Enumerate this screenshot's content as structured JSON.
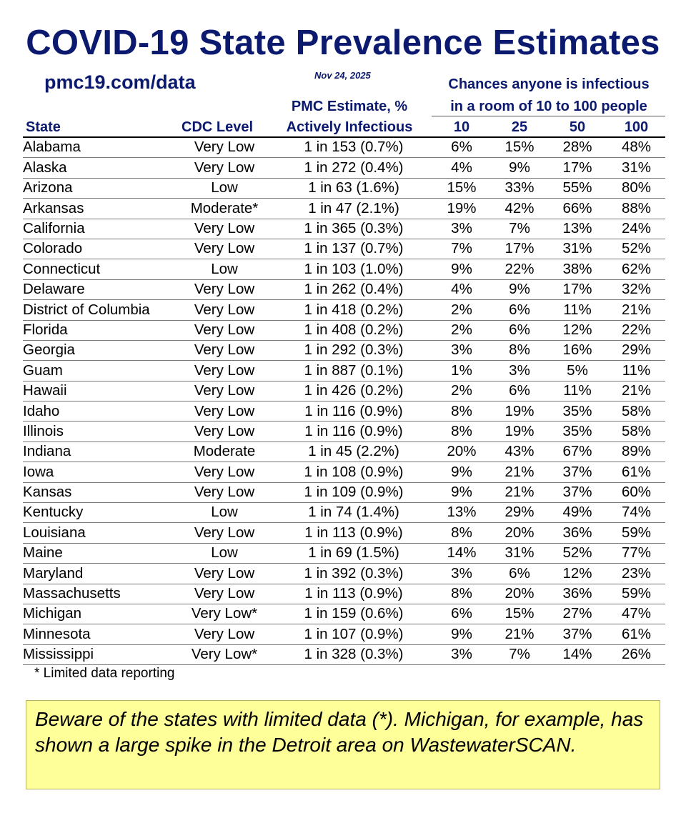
{
  "title": "COVID-19 State Prevalence Estimates",
  "url": "pmc19.com/data",
  "date": "Nov 24, 2025",
  "chances_header": [
    "Chances anyone is infectious",
    "in a room of 10 to 100 people"
  ],
  "columns": {
    "state": "State",
    "cdc": "CDC Level",
    "pmc_line1": "PMC Estimate, %",
    "pmc_line2": "Actively Infectious",
    "r10": "10",
    "r25": "25",
    "r50": "50",
    "r100": "100"
  },
  "rows": [
    {
      "state": "Alabama",
      "cdc": "Very Low",
      "pmc": "1 in 153 (0.7%)",
      "r10": "6%",
      "r25": "15%",
      "r50": "28%",
      "r100": "48%"
    },
    {
      "state": "Alaska",
      "cdc": "Very Low",
      "pmc": "1 in 272 (0.4%)",
      "r10": "4%",
      "r25": "9%",
      "r50": "17%",
      "r100": "31%"
    },
    {
      "state": "Arizona",
      "cdc": "Low",
      "pmc": "1 in 63 (1.6%)",
      "r10": "15%",
      "r25": "33%",
      "r50": "55%",
      "r100": "80%"
    },
    {
      "state": "Arkansas",
      "cdc": "Moderate*",
      "pmc": "1 in 47 (2.1%)",
      "r10": "19%",
      "r25": "42%",
      "r50": "66%",
      "r100": "88%"
    },
    {
      "state": "California",
      "cdc": "Very Low",
      "pmc": "1 in 365 (0.3%)",
      "r10": "3%",
      "r25": "7%",
      "r50": "13%",
      "r100": "24%"
    },
    {
      "state": "Colorado",
      "cdc": "Very Low",
      "pmc": "1 in 137 (0.7%)",
      "r10": "7%",
      "r25": "17%",
      "r50": "31%",
      "r100": "52%"
    },
    {
      "state": "Connecticut",
      "cdc": "Low",
      "pmc": "1 in 103 (1.0%)",
      "r10": "9%",
      "r25": "22%",
      "r50": "38%",
      "r100": "62%"
    },
    {
      "state": "Delaware",
      "cdc": "Very Low",
      "pmc": "1 in 262 (0.4%)",
      "r10": "4%",
      "r25": "9%",
      "r50": "17%",
      "r100": "32%"
    },
    {
      "state": "District of Columbia",
      "cdc": "Very Low",
      "pmc": "1 in 418 (0.2%)",
      "r10": "2%",
      "r25": "6%",
      "r50": "11%",
      "r100": "21%"
    },
    {
      "state": "Florida",
      "cdc": "Very Low",
      "pmc": "1 in 408 (0.2%)",
      "r10": "2%",
      "r25": "6%",
      "r50": "12%",
      "r100": "22%"
    },
    {
      "state": "Georgia",
      "cdc": "Very Low",
      "pmc": "1 in 292 (0.3%)",
      "r10": "3%",
      "r25": "8%",
      "r50": "16%",
      "r100": "29%"
    },
    {
      "state": "Guam",
      "cdc": "Very Low",
      "pmc": "1 in 887 (0.1%)",
      "r10": "1%",
      "r25": "3%",
      "r50": "5%",
      "r100": "11%"
    },
    {
      "state": "Hawaii",
      "cdc": "Very Low",
      "pmc": "1 in 426 (0.2%)",
      "r10": "2%",
      "r25": "6%",
      "r50": "11%",
      "r100": "21%"
    },
    {
      "state": "Idaho",
      "cdc": "Very Low",
      "pmc": "1 in 116 (0.9%)",
      "r10": "8%",
      "r25": "19%",
      "r50": "35%",
      "r100": "58%"
    },
    {
      "state": "Illinois",
      "cdc": "Very Low",
      "pmc": "1 in 116 (0.9%)",
      "r10": "8%",
      "r25": "19%",
      "r50": "35%",
      "r100": "58%"
    },
    {
      "state": "Indiana",
      "cdc": "Moderate",
      "pmc": "1 in 45 (2.2%)",
      "r10": "20%",
      "r25": "43%",
      "r50": "67%",
      "r100": "89%"
    },
    {
      "state": "Iowa",
      "cdc": "Very Low",
      "pmc": "1 in 108 (0.9%)",
      "r10": "9%",
      "r25": "21%",
      "r50": "37%",
      "r100": "61%"
    },
    {
      "state": "Kansas",
      "cdc": "Very Low",
      "pmc": "1 in 109 (0.9%)",
      "r10": "9%",
      "r25": "21%",
      "r50": "37%",
      "r100": "60%"
    },
    {
      "state": "Kentucky",
      "cdc": "Low",
      "pmc": "1 in 74 (1.4%)",
      "r10": "13%",
      "r25": "29%",
      "r50": "49%",
      "r100": "74%"
    },
    {
      "state": "Louisiana",
      "cdc": "Very Low",
      "pmc": "1 in 113 (0.9%)",
      "r10": "8%",
      "r25": "20%",
      "r50": "36%",
      "r100": "59%"
    },
    {
      "state": "Maine",
      "cdc": "Low",
      "pmc": "1 in 69 (1.5%)",
      "r10": "14%",
      "r25": "31%",
      "r50": "52%",
      "r100": "77%"
    },
    {
      "state": "Maryland",
      "cdc": "Very Low",
      "pmc": "1 in 392 (0.3%)",
      "r10": "3%",
      "r25": "6%",
      "r50": "12%",
      "r100": "23%"
    },
    {
      "state": "Massachusetts",
      "cdc": "Very Low",
      "pmc": "1 in 113 (0.9%)",
      "r10": "8%",
      "r25": "20%",
      "r50": "36%",
      "r100": "59%"
    },
    {
      "state": "Michigan",
      "cdc": "Very Low*",
      "pmc": "1 in 159 (0.6%)",
      "r10": "6%",
      "r25": "15%",
      "r50": "27%",
      "r100": "47%"
    },
    {
      "state": "Minnesota",
      "cdc": "Very Low",
      "pmc": "1 in 107 (0.9%)",
      "r10": "9%",
      "r25": "21%",
      "r50": "37%",
      "r100": "61%"
    },
    {
      "state": "Mississippi",
      "cdc": "Very Low*",
      "pmc": "1 in 328 (0.3%)",
      "r10": "3%",
      "r25": "7%",
      "r50": "14%",
      "r100": "26%"
    }
  ],
  "footnote": "* Limited data reporting",
  "note": "Beware of the states with limited data (*). Michigan, for example, has shown a large spike in the Detroit area on WastewaterSCAN.",
  "colors": {
    "title": "#0b1a6e",
    "note_bg": "#ffff99"
  }
}
